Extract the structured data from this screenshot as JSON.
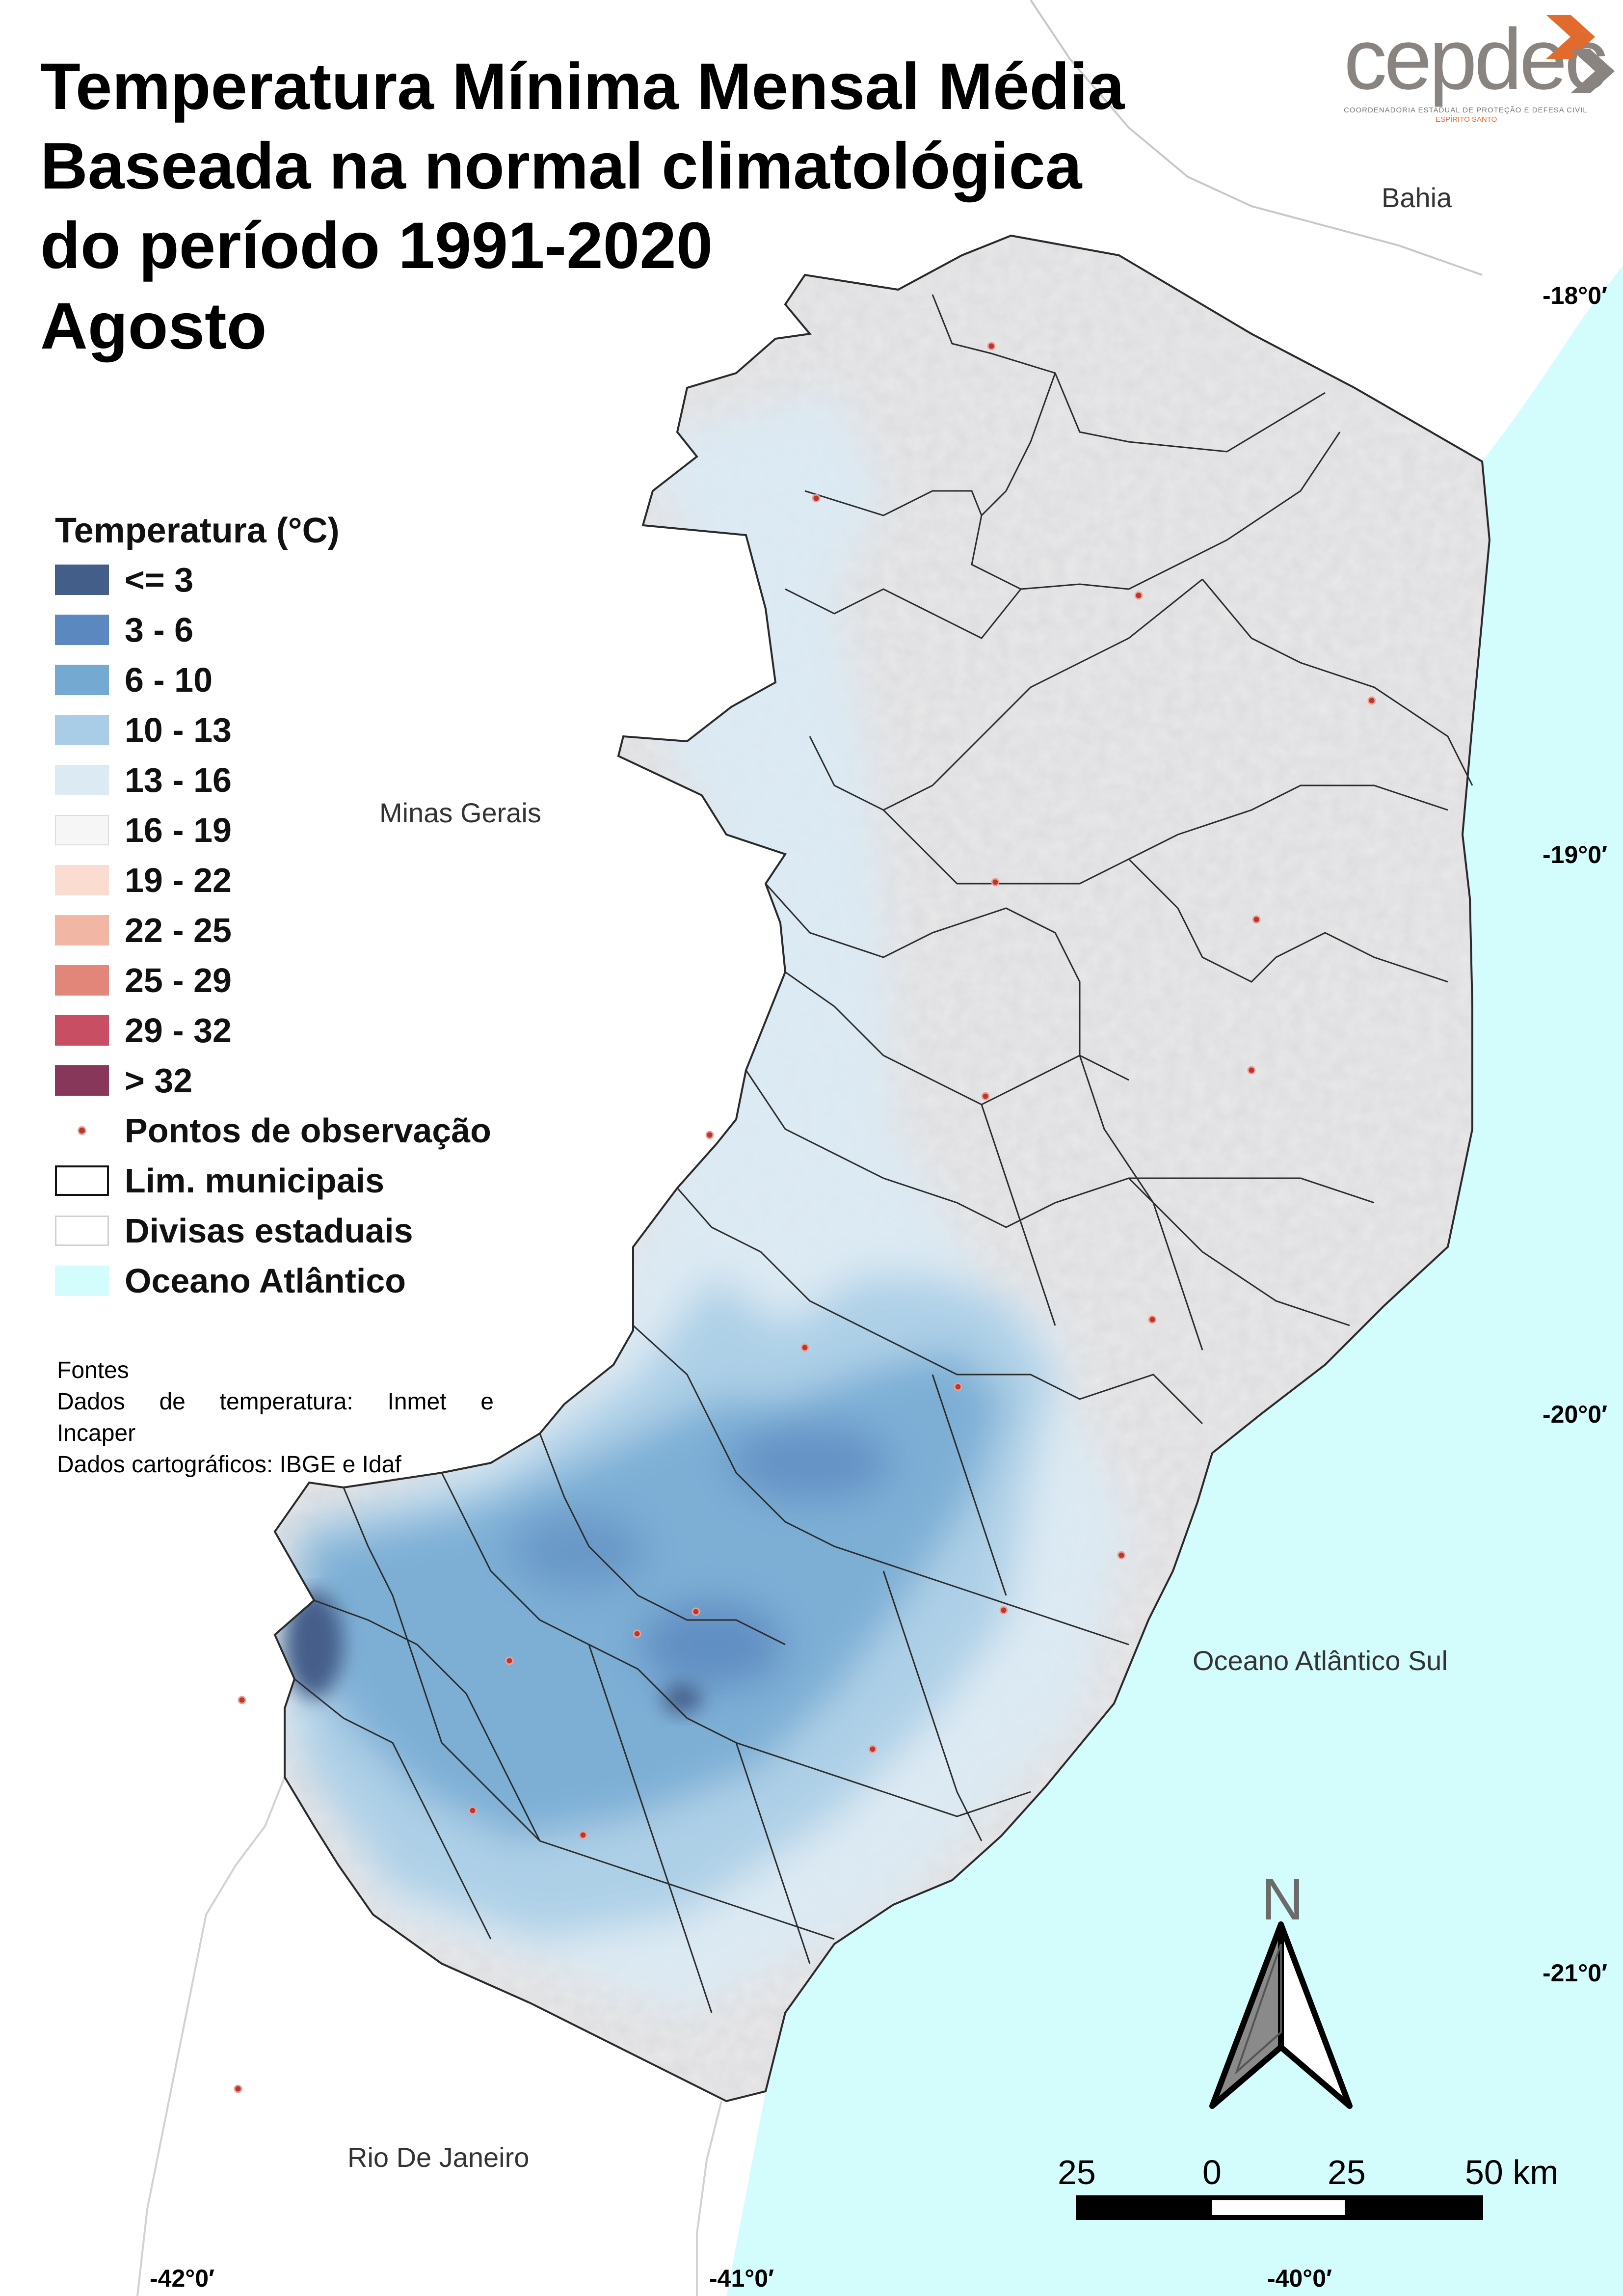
{
  "title": {
    "line1": "Temperatura Mínima Mensal Média",
    "line2": "Baseada na normal climatológica",
    "line3": "do período 1991-2020",
    "line4": "Agosto"
  },
  "logo": {
    "wordmark": "cepdec",
    "subtitle": "COORDENADORIA ESTADUAL DE PROTEÇÃO E DEFESA CIVIL",
    "state": "ESPÍRITO SANTO",
    "accent_color": "#e06b2d"
  },
  "places": {
    "bahia": "Bahia",
    "minas_gerais": "Minas Gerais",
    "oceano": "Oceano Atlântico Sul",
    "rio": "Rio De Janeiro"
  },
  "coordinates": {
    "lat": [
      "-18°0′",
      "-19°0′",
      "-20°0′",
      "-21°0′"
    ],
    "lon": [
      "-42°0′",
      "-41°0′",
      "-40°0′"
    ]
  },
  "legend": {
    "title": "Temperatura (°C)",
    "classes": [
      {
        "label": "<= 3",
        "color": "#445e8a"
      },
      {
        "label": "3 - 6",
        "color": "#5b88bf"
      },
      {
        "label": "6 - 10",
        "color": "#74a9d1"
      },
      {
        "label": "10 - 13",
        "color": "#a9cde6"
      },
      {
        "label": "13 - 16",
        "color": "#dbeaf3"
      },
      {
        "label": "16 - 19",
        "color": "#f6f6f6"
      },
      {
        "label": "19 - 22",
        "color": "#fbdcd0"
      },
      {
        "label": "22 - 25",
        "color": "#f2b7a4"
      },
      {
        "label": "25 - 29",
        "color": "#e2867a"
      },
      {
        "label": "29 - 32",
        "color": "#c74e63"
      },
      {
        "label": "> 32",
        "color": "#87385a"
      }
    ],
    "points": "Pontos de observação",
    "municipal": "Lim. municipais",
    "states": "Divisas estaduais",
    "ocean": "Oceano Atlântico",
    "ocean_color": "#d3fdfd"
  },
  "sources": {
    "heading": "Fontes",
    "temp_line_a": "Dados de temperatura: Inmet e",
    "temp_line_b": "Incaper",
    "carto": "Dados cartográficos: IBGE e Idaf"
  },
  "north": "N",
  "scale": {
    "labels": [
      "25",
      "0",
      "25",
      "50 km"
    ]
  }
}
